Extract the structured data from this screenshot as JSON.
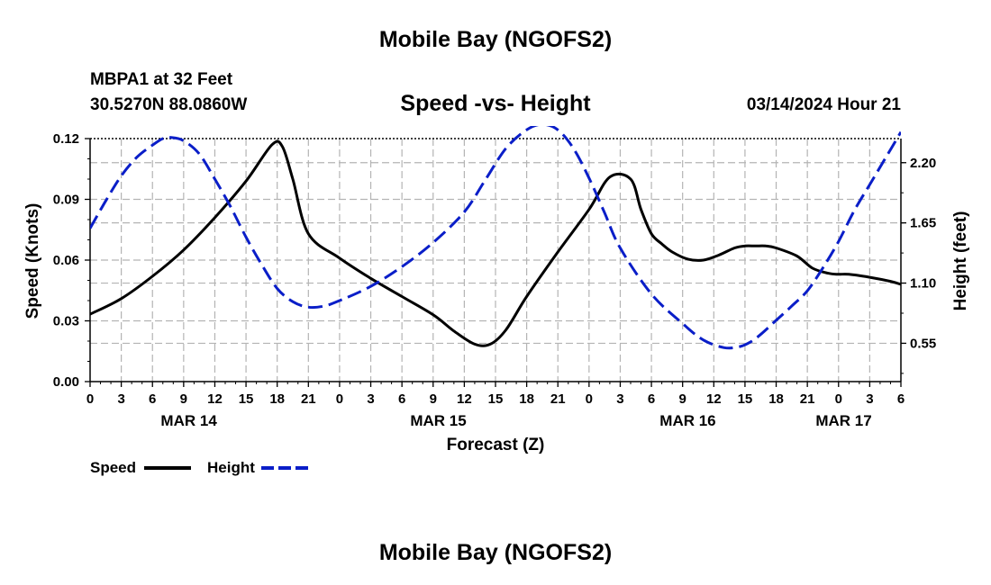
{
  "header": {
    "title": "Mobile Bay (NGOFS2)",
    "station": "MBPA1 at 32 Feet",
    "coords": "30.5270N  88.0860W",
    "subtitle": "Speed -vs- Height",
    "datetime": "03/14/2024 Hour 21"
  },
  "footer": {
    "title": "Mobile Bay (NGOFS2)"
  },
  "colors": {
    "speed": "#000000",
    "height": "#0a1ec8",
    "grid": "#b4b4b4"
  },
  "chart_data": {
    "type": "line",
    "title": "Speed -vs- Height",
    "xlabel": "Forecast (Z)",
    "ylabel": "Speed (Knots)",
    "y2label": "Height (feet)",
    "x_unit": "hours since 2024-03-14 00Z",
    "xlim": [
      0,
      78
    ],
    "x_ticks": [
      0,
      3,
      6,
      9,
      12,
      15,
      18,
      21,
      24,
      27,
      30,
      33,
      36,
      39,
      42,
      45,
      48,
      51,
      54,
      57,
      60,
      63,
      66,
      69,
      72,
      75,
      78
    ],
    "x_tick_labels": [
      "0",
      "3",
      "6",
      "9",
      "12",
      "15",
      "18",
      "21",
      "0",
      "3",
      "6",
      "9",
      "12",
      "15",
      "18",
      "21",
      "0",
      "3",
      "6",
      "9",
      "12",
      "15",
      "18",
      "21",
      "0",
      "3",
      "6"
    ],
    "date_labels": [
      {
        "x": 9.5,
        "label": "MAR 14"
      },
      {
        "x": 33.5,
        "label": "MAR 15"
      },
      {
        "x": 57.5,
        "label": "MAR 16"
      },
      {
        "x": 72.5,
        "label": "MAR 17"
      }
    ],
    "ylim": [
      0,
      0.12
    ],
    "y_ticks": [
      0,
      0.03,
      0.06,
      0.09,
      0.12
    ],
    "y_tick_labels": [
      "0.00",
      "0.03",
      "0.06",
      "0.09",
      "0.12"
    ],
    "y2lim": [
      0.2,
      2.42
    ],
    "y2_ticks": [
      0.55,
      1.1,
      1.65,
      2.2
    ],
    "y2_tick_labels": [
      "0.55",
      "1.10",
      "1.65",
      "2.20"
    ],
    "legend": {
      "position": "bottom-left",
      "entries": [
        "Speed",
        "Height"
      ]
    },
    "series": [
      {
        "name": "Speed",
        "axis": "left",
        "style": "solid",
        "x": [
          0,
          3,
          6,
          9,
          12,
          15,
          17.5,
          18.5,
          19.5,
          21,
          24,
          27,
          30,
          33,
          35,
          37,
          38.5,
          40,
          42,
          45,
          48,
          50,
          52,
          53,
          54,
          55,
          56,
          57.5,
          59,
          60.5,
          62,
          63,
          64,
          65,
          66,
          68,
          69.5,
          71,
          72,
          73,
          75,
          77,
          78
        ],
        "values": [
          0.0333,
          0.041,
          0.052,
          0.065,
          0.081,
          0.099,
          0.117,
          0.116,
          0.1,
          0.073,
          0.061,
          0.051,
          0.042,
          0.033,
          0.025,
          0.0185,
          0.0185,
          0.0255,
          0.042,
          0.064,
          0.085,
          0.101,
          0.1,
          0.085,
          0.073,
          0.068,
          0.064,
          0.0605,
          0.06,
          0.0625,
          0.066,
          0.067,
          0.067,
          0.067,
          0.066,
          0.062,
          0.056,
          0.0535,
          0.053,
          0.053,
          0.0515,
          0.0495,
          0.048
        ]
      },
      {
        "name": "Height",
        "axis": "right",
        "style": "dashed",
        "x": [
          0,
          1.5,
          3,
          4.5,
          6,
          7,
          7.8,
          9,
          10.5,
          12,
          13.5,
          15,
          16.5,
          18,
          19.5,
          21,
          22.5,
          24,
          27,
          30,
          33,
          36,
          38,
          40,
          42,
          43.5,
          45,
          46.5,
          48,
          49.5,
          51,
          54,
          57,
          59,
          61,
          62.5,
          63.5,
          64.5,
          66,
          67.5,
          69,
          70.5,
          72,
          73.5,
          75,
          76.5,
          78
        ],
        "values": [
          1.6,
          1.85,
          2.08,
          2.25,
          2.36,
          2.42,
          2.43,
          2.4,
          2.28,
          2.05,
          1.8,
          1.52,
          1.27,
          1.05,
          0.93,
          0.88,
          0.89,
          0.94,
          1.07,
          1.25,
          1.47,
          1.75,
          2.04,
          2.33,
          2.5,
          2.55,
          2.5,
          2.33,
          2.06,
          1.74,
          1.42,
          1.0,
          0.73,
          0.58,
          0.51,
          0.52,
          0.56,
          0.63,
          0.76,
          0.89,
          1.03,
          1.24,
          1.48,
          1.76,
          2.0,
          2.24,
          2.48
        ]
      }
    ]
  }
}
